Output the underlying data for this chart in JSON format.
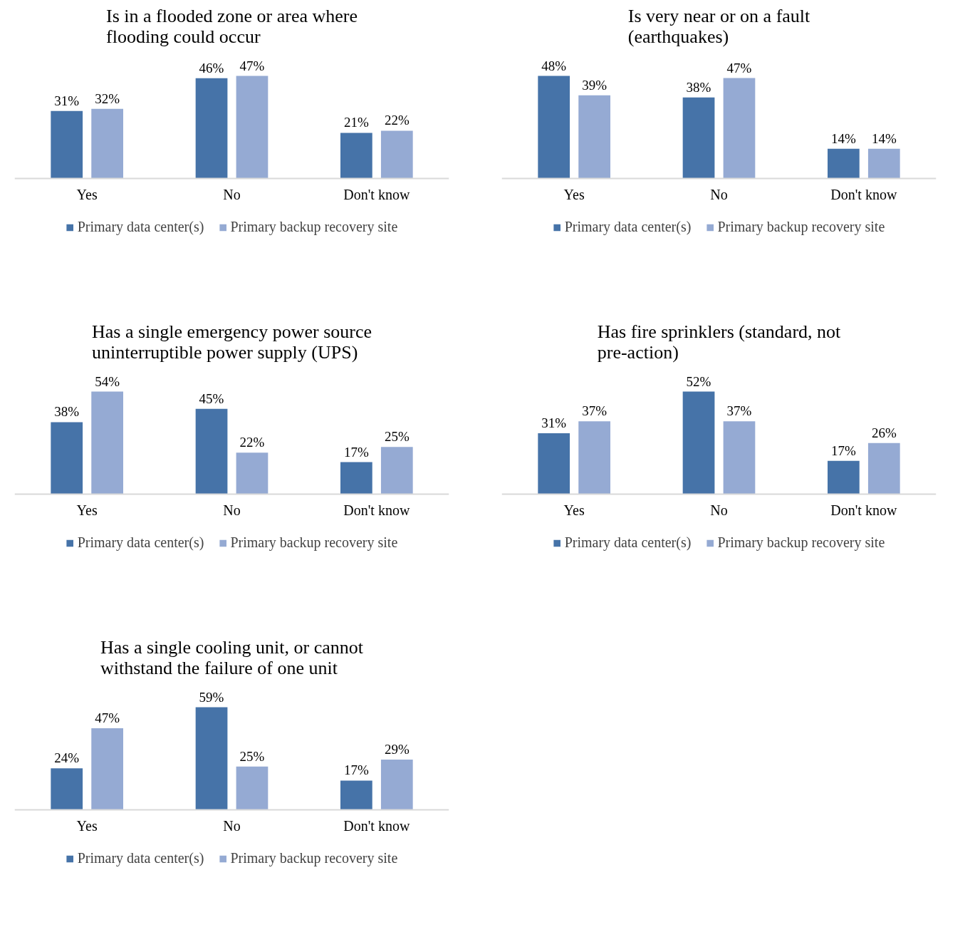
{
  "chart_data": [
    {
      "type": "bar",
      "title": "Is in a flooded zone or area where flooding could occur",
      "categories": [
        "Yes",
        "No",
        "Don't know"
      ],
      "series": [
        {
          "name": "Primary data center(s)",
          "color": "#4673a8",
          "values": [
            31,
            46,
            21
          ],
          "value_labels": [
            "31%",
            "46%",
            "21%"
          ]
        },
        {
          "name": "Primary backup recovery site",
          "color": "#95aad3",
          "values": [
            32,
            47,
            22
          ],
          "value_labels": [
            "32%",
            "47%",
            "22%"
          ]
        }
      ],
      "legend": "bottom",
      "grid": false,
      "tick_labels": "x"
    },
    {
      "type": "bar",
      "title": "Is very near or on a fault (earthquakes)",
      "categories": [
        "Yes",
        "No",
        "Don't know"
      ],
      "series": [
        {
          "name": "Primary data center(s)",
          "color": "#4673a8",
          "values": [
            48,
            38,
            14
          ],
          "value_labels": [
            "48%",
            "38%",
            "14%"
          ]
        },
        {
          "name": "Primary backup recovery site",
          "color": "#95aad3",
          "values": [
            39,
            47,
            14
          ],
          "value_labels": [
            "39%",
            "47%",
            "14%"
          ]
        }
      ],
      "legend": "bottom",
      "grid": false,
      "tick_labels": "x"
    },
    {
      "type": "bar",
      "title": "Has a single emergency power source uninterruptible power supply (UPS)",
      "categories": [
        "Yes",
        "No",
        "Don't know"
      ],
      "series": [
        {
          "name": "Primary data center(s)",
          "color": "#4673a8",
          "values": [
            38,
            45,
            17
          ],
          "value_labels": [
            "38%",
            "45%",
            "17%"
          ]
        },
        {
          "name": "Primary backup recovery site",
          "color": "#95aad3",
          "values": [
            54,
            22,
            25
          ],
          "value_labels": [
            "54%",
            "22%",
            "25%"
          ]
        }
      ],
      "legend": "bottom",
      "grid": false,
      "tick_labels": "x"
    },
    {
      "type": "bar",
      "title": "Has fire sprinklers (standard, not pre-action)",
      "categories": [
        "Yes",
        "No",
        "Don't know"
      ],
      "series": [
        {
          "name": "Primary data center(s)",
          "color": "#4673a8",
          "values": [
            31,
            52,
            17
          ],
          "value_labels": [
            "31%",
            "52%",
            "17%"
          ]
        },
        {
          "name": "Primary backup recovery site",
          "color": "#95aad3",
          "values": [
            37,
            37,
            26
          ],
          "value_labels": [
            "37%",
            "37%",
            "26%"
          ]
        }
      ],
      "legend": "bottom",
      "grid": false,
      "tick_labels": "x"
    },
    {
      "type": "bar",
      "title": "Has a single cooling unit, or cannot withstand the failure of one unit",
      "categories": [
        "Yes",
        "No",
        "Don't know"
      ],
      "series": [
        {
          "name": "Primary data center(s)",
          "color": "#4673a8",
          "values": [
            24,
            59,
            17
          ],
          "value_labels": [
            "24%",
            "59%",
            "17%"
          ]
        },
        {
          "name": "Primary backup recovery site",
          "color": "#95aad3",
          "values": [
            47,
            25,
            29
          ],
          "value_labels": [
            "47%",
            "25%",
            "29%"
          ]
        }
      ],
      "legend": "bottom",
      "grid": false,
      "tick_labels": "x"
    }
  ]
}
